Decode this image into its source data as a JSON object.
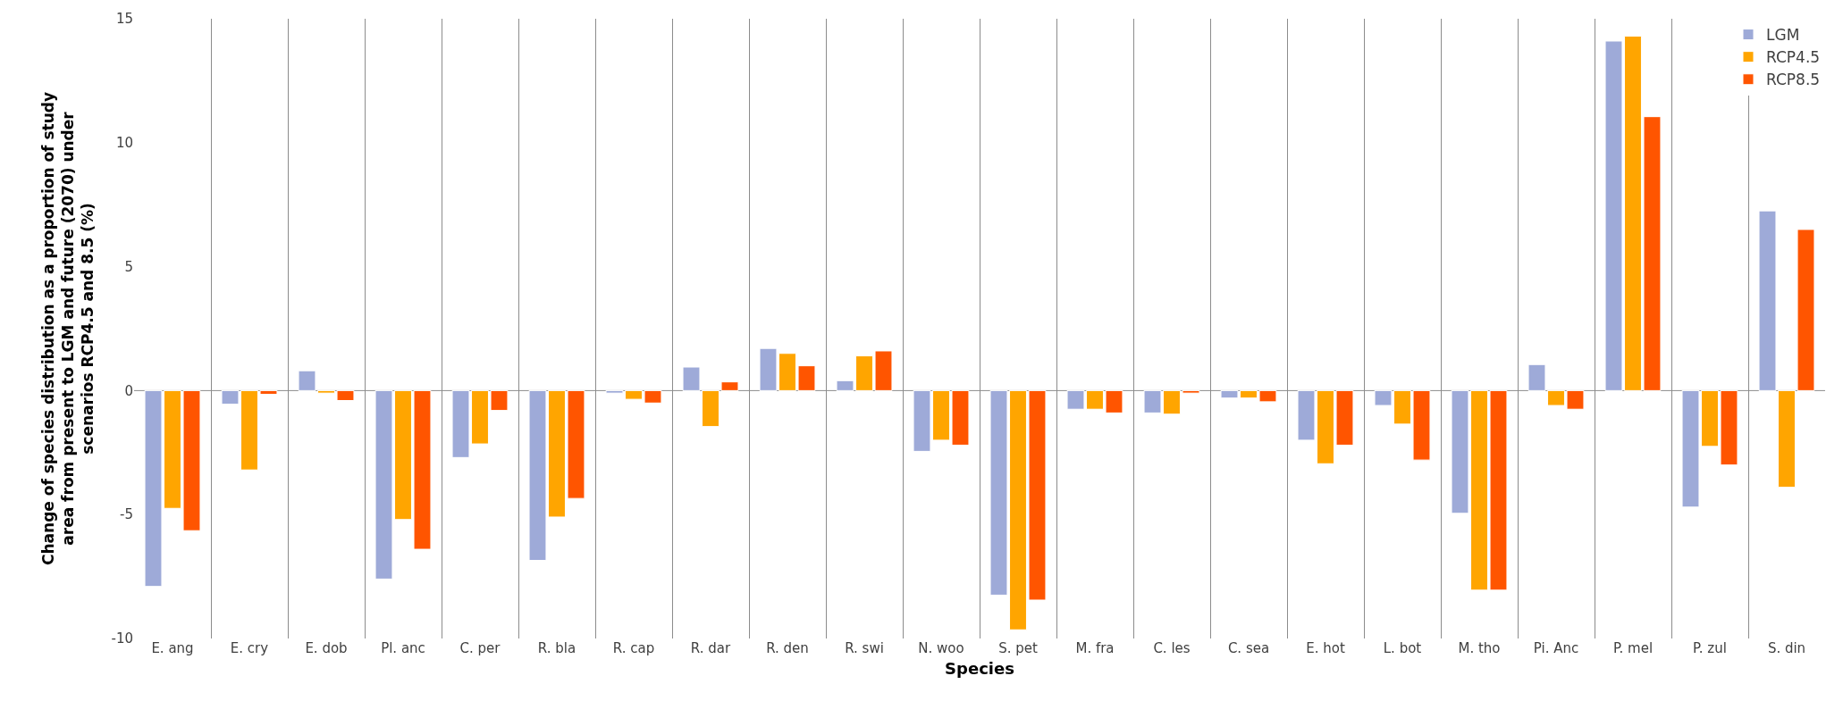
{
  "chart_data": {
    "type": "bar",
    "xlabel": "Species",
    "ylabel": "Change of species distribution as a proportion of study area from present to LGM and future (2070) under scenarios RCP4.5 and 8.5 (%)",
    "categories": [
      "E. ang",
      "E. cry",
      "E. dob",
      "Pl. anc",
      "C. per",
      "R. bla",
      "R. cap",
      "R. dar",
      "R. den",
      "R. swi",
      "N. woo",
      "S. pet",
      "M. fra",
      "C. les",
      "C. sea",
      "E. hot",
      "L. bot",
      "M. tho",
      "Pi. Anc",
      "P. mel",
      "P. zul",
      "S. din"
    ],
    "series": [
      {
        "name": "LGM",
        "color": "#9eaad8",
        "values": [
          -7.9,
          -0.55,
          0.8,
          -7.6,
          -2.7,
          -6.85,
          -0.1,
          0.95,
          1.7,
          0.4,
          -2.45,
          -8.25,
          -0.75,
          -0.9,
          -0.3,
          -2.0,
          -0.6,
          -4.95,
          1.05,
          14.1,
          -4.7,
          7.25
        ]
      },
      {
        "name": "RCP4.5",
        "color": "#ffa500",
        "values": [
          -4.75,
          -3.2,
          -0.1,
          -5.2,
          -2.15,
          -5.1,
          -0.35,
          -1.45,
          1.5,
          1.4,
          -2.0,
          -9.65,
          -0.75,
          -0.95,
          -0.3,
          -2.95,
          -1.35,
          -8.05,
          -0.6,
          14.3,
          -2.25,
          -3.9
        ]
      },
      {
        "name": "RCP8.5",
        "color": "#ff5500",
        "values": [
          -5.65,
          -0.15,
          -0.4,
          -6.4,
          -0.8,
          -4.35,
          -0.5,
          0.35,
          1.0,
          1.6,
          -2.2,
          -8.45,
          -0.9,
          -0.1,
          -0.45,
          -2.2,
          -2.8,
          -8.05,
          -0.75,
          11.05,
          -3.0,
          6.5
        ]
      }
    ],
    "ylim": [
      -10,
      15
    ],
    "yticks": [
      -10,
      -5,
      0,
      5,
      10,
      15
    ],
    "grid": "x",
    "ref_lines": [
      {
        "axis": "y",
        "value": 0,
        "color": "#8c8c8c"
      }
    ],
    "legend": "top right"
  }
}
